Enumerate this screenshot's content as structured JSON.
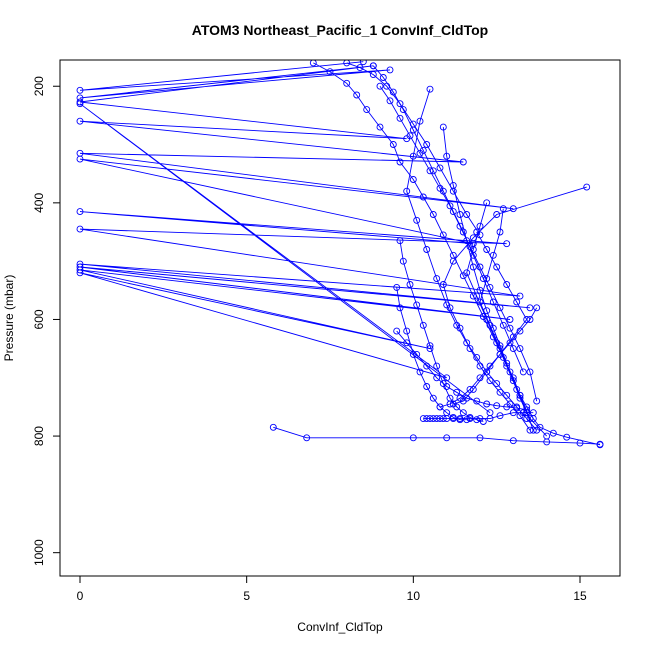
{
  "chart_data": {
    "type": "line",
    "title": "ATOM3 Northeast_Pacific_1 ConvInf_CldTop",
    "xlabel": "ConvInf_CldTop",
    "ylabel": "Pressure (mbar)",
    "xlim": [
      -0.6,
      16.2
    ],
    "ylim": [
      1040,
      155
    ],
    "y_reversed": true,
    "xticks": [
      0,
      5,
      10,
      15
    ],
    "yticks": [
      200,
      400,
      600,
      800,
      1000
    ],
    "series_color": "#0000ff",
    "marker": "open-circle",
    "grid": false,
    "legend": "none",
    "series": [
      {
        "x": [
          8.5,
          0,
          9.3,
          0,
          8.8,
          0,
          9.8,
          0,
          11.5,
          0,
          13.0,
          0,
          11.8,
          0,
          12.8,
          0,
          13.2,
          0,
          13.5,
          0,
          12.9,
          0,
          10.5,
          0,
          11.0,
          0,
          12.3
        ],
        "y": [
          158,
          207,
          172,
          220,
          165,
          227,
          290,
          260,
          330,
          315,
          410,
          325,
          470,
          415,
          470,
          445,
          560,
          505,
          580,
          510,
          600,
          515,
          650,
          520,
          700,
          230,
          760
        ]
      },
      {
        "x": [
          7.0,
          7.5,
          8.0,
          8.3,
          8.6,
          9.0,
          9.4,
          9.6,
          10.0,
          10.3,
          10.6,
          10.9,
          11.2,
          11.5,
          11.8,
          12.1,
          12.4,
          12.7,
          13.0,
          13.2,
          13.4,
          13.6,
          13.8,
          14.2,
          14.6,
          15.6
        ],
        "y": [
          160,
          175,
          195,
          215,
          240,
          270,
          300,
          330,
          360,
          390,
          420,
          455,
          490,
          525,
          560,
          595,
          630,
          665,
          700,
          730,
          750,
          770,
          785,
          795,
          802,
          815
        ]
      },
      {
        "x": [
          8.8,
          9.1,
          9.4,
          9.7,
          10.0,
          10.3,
          10.6,
          10.9,
          11.2,
          11.5,
          11.8,
          12.1,
          12.4,
          12.7,
          13.0,
          13.3
        ],
        "y": [
          165,
          185,
          210,
          240,
          275,
          310,
          345,
          380,
          415,
          450,
          490,
          530,
          570,
          610,
          650,
          690
        ]
      },
      {
        "x": [
          9.0,
          9.3,
          9.6,
          9.9,
          10.2,
          10.5,
          10.8,
          11.1,
          11.4,
          11.7,
          12.0,
          12.3,
          12.6,
          12.9,
          13.2,
          13.5,
          13.7
        ],
        "y": [
          200,
          225,
          255,
          285,
          315,
          345,
          375,
          405,
          440,
          475,
          510,
          545,
          580,
          615,
          650,
          690,
          740
        ]
      },
      {
        "x": [
          10.5,
          10.2,
          10.0,
          9.8,
          10.1,
          10.4,
          10.7,
          11.0,
          11.3,
          11.6,
          11.9,
          12.2,
          12.5,
          12.8,
          13.1,
          13.4,
          13.7
        ],
        "y": [
          205,
          260,
          320,
          380,
          430,
          480,
          530,
          575,
          610,
          640,
          665,
          690,
          710,
          730,
          750,
          770,
          790
        ]
      },
      {
        "x": [
          10.9,
          11.0,
          11.2,
          11.4,
          11.6,
          11.8,
          12.0,
          12.2,
          12.4,
          12.6,
          12.8,
          13.0,
          13.2,
          13.4,
          13.6
        ],
        "y": [
          270,
          320,
          370,
          420,
          465,
          510,
          550,
          585,
          615,
          645,
          675,
          705,
          735,
          760,
          790
        ]
      },
      {
        "x": [
          15.2,
          12.5,
          11.8,
          11.2,
          10.9,
          11.1,
          11.4,
          11.7,
          12.0,
          12.3,
          12.6,
          12.9,
          13.2,
          13.5
        ],
        "y": [
          373,
          420,
          460,
          500,
          540,
          580,
          615,
          650,
          680,
          705,
          725,
          745,
          765,
          790
        ]
      },
      {
        "x": [
          9.6,
          9.7,
          9.9,
          10.1,
          10.3,
          10.5,
          10.7,
          10.9,
          11.1,
          11.3,
          11.5,
          11.7,
          11.9,
          12.1
        ],
        "y": [
          465,
          500,
          540,
          575,
          610,
          645,
          680,
          710,
          735,
          750,
          760,
          768,
          772,
          775
        ]
      },
      {
        "x": [
          9.5,
          9.6,
          9.8,
          10.0,
          10.2,
          10.4,
          10.6,
          10.8,
          11.0,
          11.2,
          11.4,
          11.6
        ],
        "y": [
          545,
          580,
          620,
          660,
          690,
          715,
          735,
          750,
          760,
          768,
          772,
          772
        ]
      },
      {
        "x": [
          5.8,
          6.8,
          10.0,
          11.0,
          12.0,
          13.0,
          14.0,
          15.0,
          15.6
        ],
        "y": [
          785,
          803,
          803,
          803,
          803,
          808,
          810,
          812,
          814
        ]
      },
      {
        "x": [
          10.3,
          10.4,
          10.5,
          10.6,
          10.7,
          10.8,
          10.9,
          11.0,
          11.2,
          11.4,
          11.7,
          12.0,
          12.3,
          12.6,
          13.0,
          13.3,
          13.6
        ],
        "y": [
          770,
          770,
          770,
          770,
          770,
          770,
          770,
          770,
          770,
          770,
          770,
          770,
          770,
          765,
          760,
          760,
          760
        ]
      },
      {
        "x": [
          11.9,
          12.2,
          12.5,
          12.8,
          13.1,
          13.4,
          13.0,
          12.6,
          12.2,
          11.8,
          11.5,
          11.2
        ],
        "y": [
          450,
          480,
          510,
          540,
          570,
          600,
          630,
          660,
          690,
          720,
          740,
          745
        ]
      },
      {
        "x": [
          12.2,
          12.0,
          11.8,
          11.6,
          11.9,
          12.2,
          12.5,
          12.8,
          13.1,
          13.4
        ],
        "y": [
          400,
          440,
          480,
          520,
          560,
          600,
          640,
          680,
          720,
          760
        ]
      },
      {
        "x": [
          12.7,
          12.6,
          12.4,
          12.2,
          12.0,
          12.3,
          12.6,
          12.9,
          13.2,
          13.5,
          14.0
        ],
        "y": [
          410,
          450,
          490,
          530,
          570,
          610,
          650,
          690,
          730,
          770,
          800
        ]
      },
      {
        "x": [
          13.7,
          13.5,
          13.2,
          12.9,
          12.6,
          12.3,
          12.0,
          11.7,
          11.4,
          11.1,
          10.8
        ],
        "y": [
          580,
          600,
          620,
          640,
          660,
          680,
          700,
          720,
          735,
          745,
          750
        ]
      },
      {
        "x": [
          9.5,
          9.8,
          10.1,
          10.4,
          10.7,
          11.0,
          11.3,
          11.6,
          11.9,
          12.2,
          12.5,
          12.8,
          13.1,
          13.4
        ],
        "y": [
          620,
          640,
          660,
          680,
          700,
          715,
          725,
          735,
          740,
          745,
          748,
          750,
          752,
          755
        ]
      },
      {
        "x": [
          8.0,
          8.4,
          8.8,
          9.2,
          9.6,
          10.0,
          10.4,
          10.8,
          11.2,
          11.6,
          12.0
        ],
        "y": [
          160,
          168,
          180,
          200,
          230,
          265,
          300,
          340,
          380,
          420,
          455
        ]
      }
    ]
  }
}
